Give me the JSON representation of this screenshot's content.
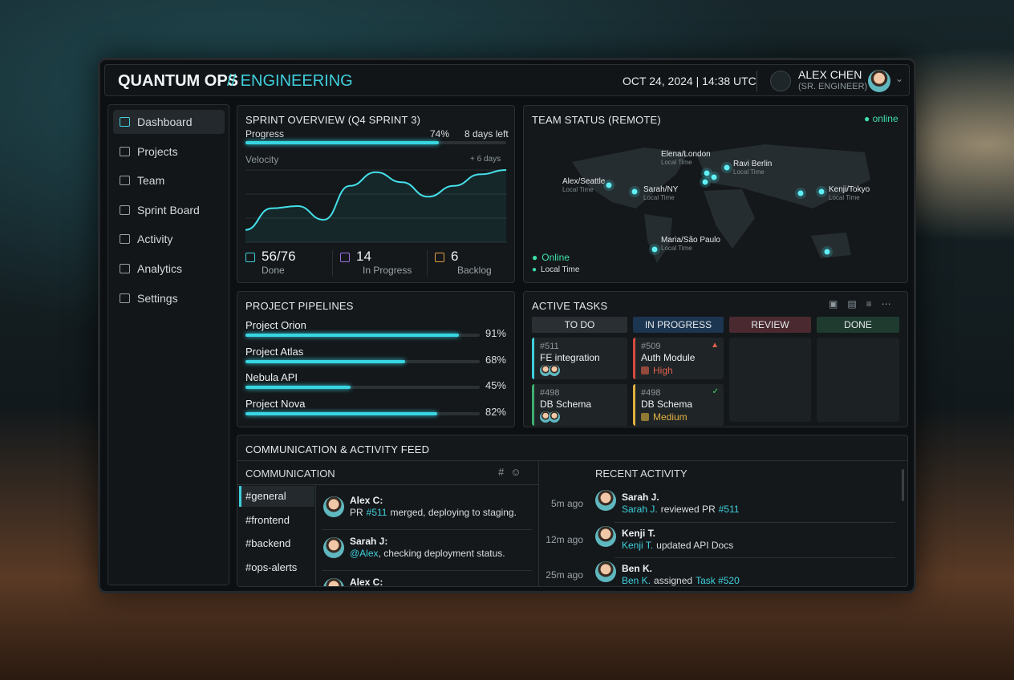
{
  "header": {
    "brand": "QUANTUM OPS",
    "section": "// ENGINEERING",
    "datetime": "OCT 24, 2024 | 14:38 UTC",
    "user_name": "ALEX CHEN",
    "user_role": "(SR. ENGINEER)"
  },
  "nav": [
    "Dashboard",
    "Projects",
    "Team",
    "Sprint Board",
    "Activity",
    "Analytics",
    "Settings"
  ],
  "sprint": {
    "title": "SPRINT OVERVIEW (Q4 SPRINT 3)",
    "progress_label": "Progress",
    "progress": 74,
    "progress_text": "74%",
    "remaining": "8 days left",
    "velocity_label": "Velocity",
    "velocity_note": "+ 6 days",
    "velocity": [
      17,
      47,
      50,
      31,
      78,
      97,
      83,
      63,
      78,
      94,
      100
    ],
    "velocity_ylim": [
      0,
      100
    ],
    "stats": [
      {
        "value": "56/76",
        "label": "Done"
      },
      {
        "value": "14",
        "label": "In Progress"
      },
      {
        "value": "6",
        "label": "Backlog"
      }
    ]
  },
  "team": {
    "title": "TEAM STATUS (REMOTE)",
    "status": "online",
    "members": [
      {
        "name": "Elena/London",
        "time": "Local Time"
      },
      {
        "name": "Ravi Berlin",
        "time": "Local Time"
      },
      {
        "name": "Alex/Seattle",
        "time": "Local Time"
      },
      {
        "name": "Sarah/NY",
        "time": "Local Time"
      },
      {
        "name": "Kenji/Tokyo",
        "time": "Local Time"
      },
      {
        "name": "Maria/São Paulo",
        "time": "Local Time"
      }
    ],
    "legend": [
      "Online",
      "Local Time"
    ]
  },
  "pipelines": {
    "title": "PROJECT PIPELINES",
    "projects": [
      {
        "name": "Project Orion",
        "value": 91,
        "label": "91%"
      },
      {
        "name": "Project Atlas",
        "value": 68,
        "label": "68%"
      },
      {
        "name": "Nebula API",
        "value": 45,
        "label": "45%"
      },
      {
        "name": "Project Nova",
        "value": 82,
        "label": "82%"
      }
    ]
  },
  "tasks": {
    "title": "ACTIVE TASKS",
    "columns": [
      {
        "name": "TO DO",
        "cards": [
          {
            "id": "#511",
            "title": "FE integration"
          },
          {
            "id": "#498",
            "title": "DB Schema"
          }
        ]
      },
      {
        "name": "IN PROGRESS",
        "cards": [
          {
            "id": "#509",
            "title": "Auth Module",
            "priority": "High"
          },
          {
            "id": "#498",
            "title": "DB Schema",
            "priority": "Medium"
          }
        ]
      },
      {
        "name": "REVIEW",
        "cards": []
      },
      {
        "name": "DONE",
        "cards": []
      }
    ]
  },
  "feed": {
    "title": "COMMUNICATION & ACTIVITY FEED",
    "communication": {
      "title": "COMMUNICATION",
      "channels": [
        "#general",
        "#frontend",
        "#backend",
        "#ops-alerts"
      ],
      "messages": [
        {
          "author": "Alex C:",
          "pre": "PR",
          "link": "#511",
          "post": "merged, deploying to staging."
        },
        {
          "author": "Sarah J:",
          "link": "@Alex",
          "post": ", checking deployment status."
        },
        {
          "author": "Alex C:"
        }
      ]
    },
    "activity": {
      "title": "RECENT ACTIVITY",
      "items": [
        {
          "time": "5m ago",
          "name": "Sarah J.",
          "actor": "Sarah J.",
          "action": "reviewed PR",
          "target": "#511"
        },
        {
          "time": "12m ago",
          "name": "Kenji T.",
          "actor": "Kenji T.",
          "action": "updated API Docs"
        },
        {
          "time": "25m ago",
          "name": "Ben K.",
          "actor": "Ben K.",
          "action": "assigned",
          "target": "Task #520"
        }
      ]
    }
  }
}
